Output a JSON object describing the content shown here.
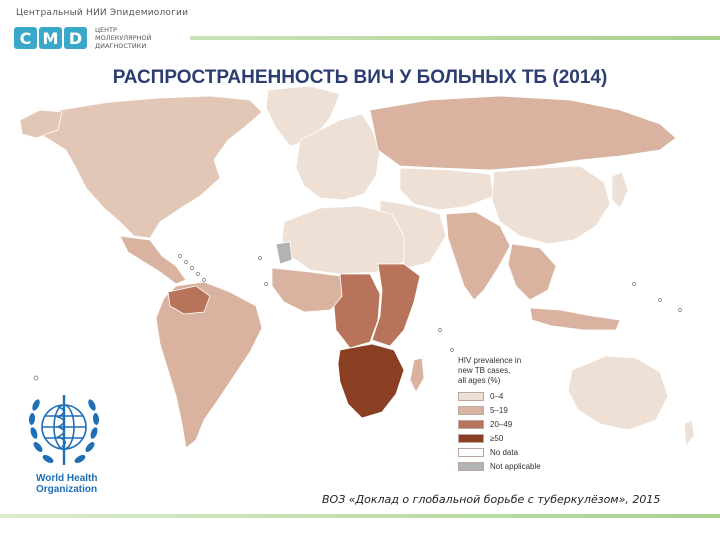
{
  "header": {
    "org_name": "Центральный НИИ Эпидемиологии",
    "logo": {
      "letters": [
        "C",
        "M",
        "D"
      ],
      "letter_colors": [
        "#3aa8c9",
        "#3aa8c9",
        "#3aa8c9"
      ],
      "subtitle": "ЦЕНТР\nМОЛЕКУЛЯРНОЙ\nДИАГНОСТИКИ"
    }
  },
  "slide": {
    "title": "РАСПРОСТРАНЕННОСТЬ ВИЧ У БОЛЬНЫХ ТБ (2014)",
    "citation": "ВОЗ «Доклад о глобальной борьбе с туберкулёзом», 2015"
  },
  "legend": {
    "title": "HIV prevalence in\nnew TB cases,\nall ages (%)",
    "items": [
      {
        "label": "0–4",
        "color": "#efe0d6"
      },
      {
        "label": "5–19",
        "color": "#d9b39f"
      },
      {
        "label": "20–49",
        "color": "#b8745a"
      },
      {
        "label": "≥50",
        "color": "#8a3f22"
      },
      {
        "label": "No data",
        "color": "#ffffff"
      },
      {
        "label": "Not applicable",
        "color": "#b3b3b3"
      }
    ]
  },
  "who": {
    "name_line1": "World Health",
    "name_line2": "Organization",
    "color": "#1f6fb5"
  },
  "map_regions": [
    {
      "region": "North America",
      "category": "0–4"
    },
    {
      "region": "Central America",
      "category": "5–19"
    },
    {
      "region": "South America",
      "category": "5–19"
    },
    {
      "region": "Venezuela/Guyana",
      "category": "20–49"
    },
    {
      "region": "Greenland",
      "category": "0–4"
    },
    {
      "region": "Europe",
      "category": "0–4"
    },
    {
      "region": "Eastern Europe/Russia",
      "category": "5–19"
    },
    {
      "region": "Central Asia",
      "category": "0–4"
    },
    {
      "region": "Middle East",
      "category": "0–4"
    },
    {
      "region": "North Africa",
      "category": "0–4"
    },
    {
      "region": "Western Sahara",
      "category": "Not applicable"
    },
    {
      "region": "West Africa",
      "category": "5–19"
    },
    {
      "region": "Central Africa",
      "category": "20–49"
    },
    {
      "region": "East Africa",
      "category": "20–49"
    },
    {
      "region": "Southern Africa",
      "category": "≥50"
    },
    {
      "region": "South Asia",
      "category": "5–19"
    },
    {
      "region": "China/East Asia",
      "category": "0–4"
    },
    {
      "region": "Southeast Asia",
      "category": "5–19"
    },
    {
      "region": "Australia",
      "category": "0–4"
    }
  ]
}
